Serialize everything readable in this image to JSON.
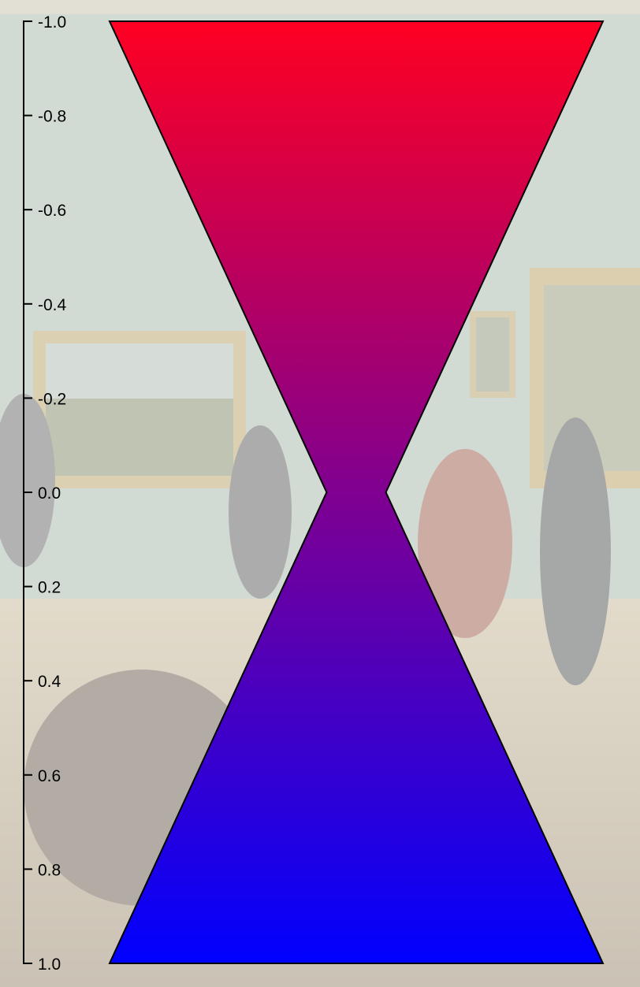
{
  "chart_data": {
    "type": "area",
    "title": "",
    "xlabel": "",
    "ylabel": "",
    "y_axis": {
      "orientation": "vertical",
      "position": "left",
      "range": [
        -1.0,
        1.0
      ],
      "ticks": [
        -1.0,
        -0.8,
        -0.6,
        -0.4,
        -0.2,
        0.0,
        0.2,
        0.4,
        0.6,
        0.8,
        1.0
      ],
      "tick_labels": [
        "-1.0",
        "-0.8",
        "-0.6",
        "-0.4",
        "-0.2",
        "0.0",
        "0.2",
        "0.4",
        "0.6",
        "0.8",
        "1.0"
      ]
    },
    "shape": {
      "kind": "symmetric-profile",
      "description_points": [
        {
          "y": -1.0,
          "half_width": 1.0
        },
        {
          "y": 0.0,
          "half_width": 0.12
        },
        {
          "y": 1.0,
          "half_width": 1.0
        }
      ],
      "gradient": {
        "top_color": "#ff0022",
        "bottom_color": "#0000ff"
      },
      "stroke_color": "#000000"
    },
    "grid": false,
    "legend": "none"
  },
  "colors": {
    "axis": "#000000",
    "background_overlay": "#f2f2ee"
  }
}
